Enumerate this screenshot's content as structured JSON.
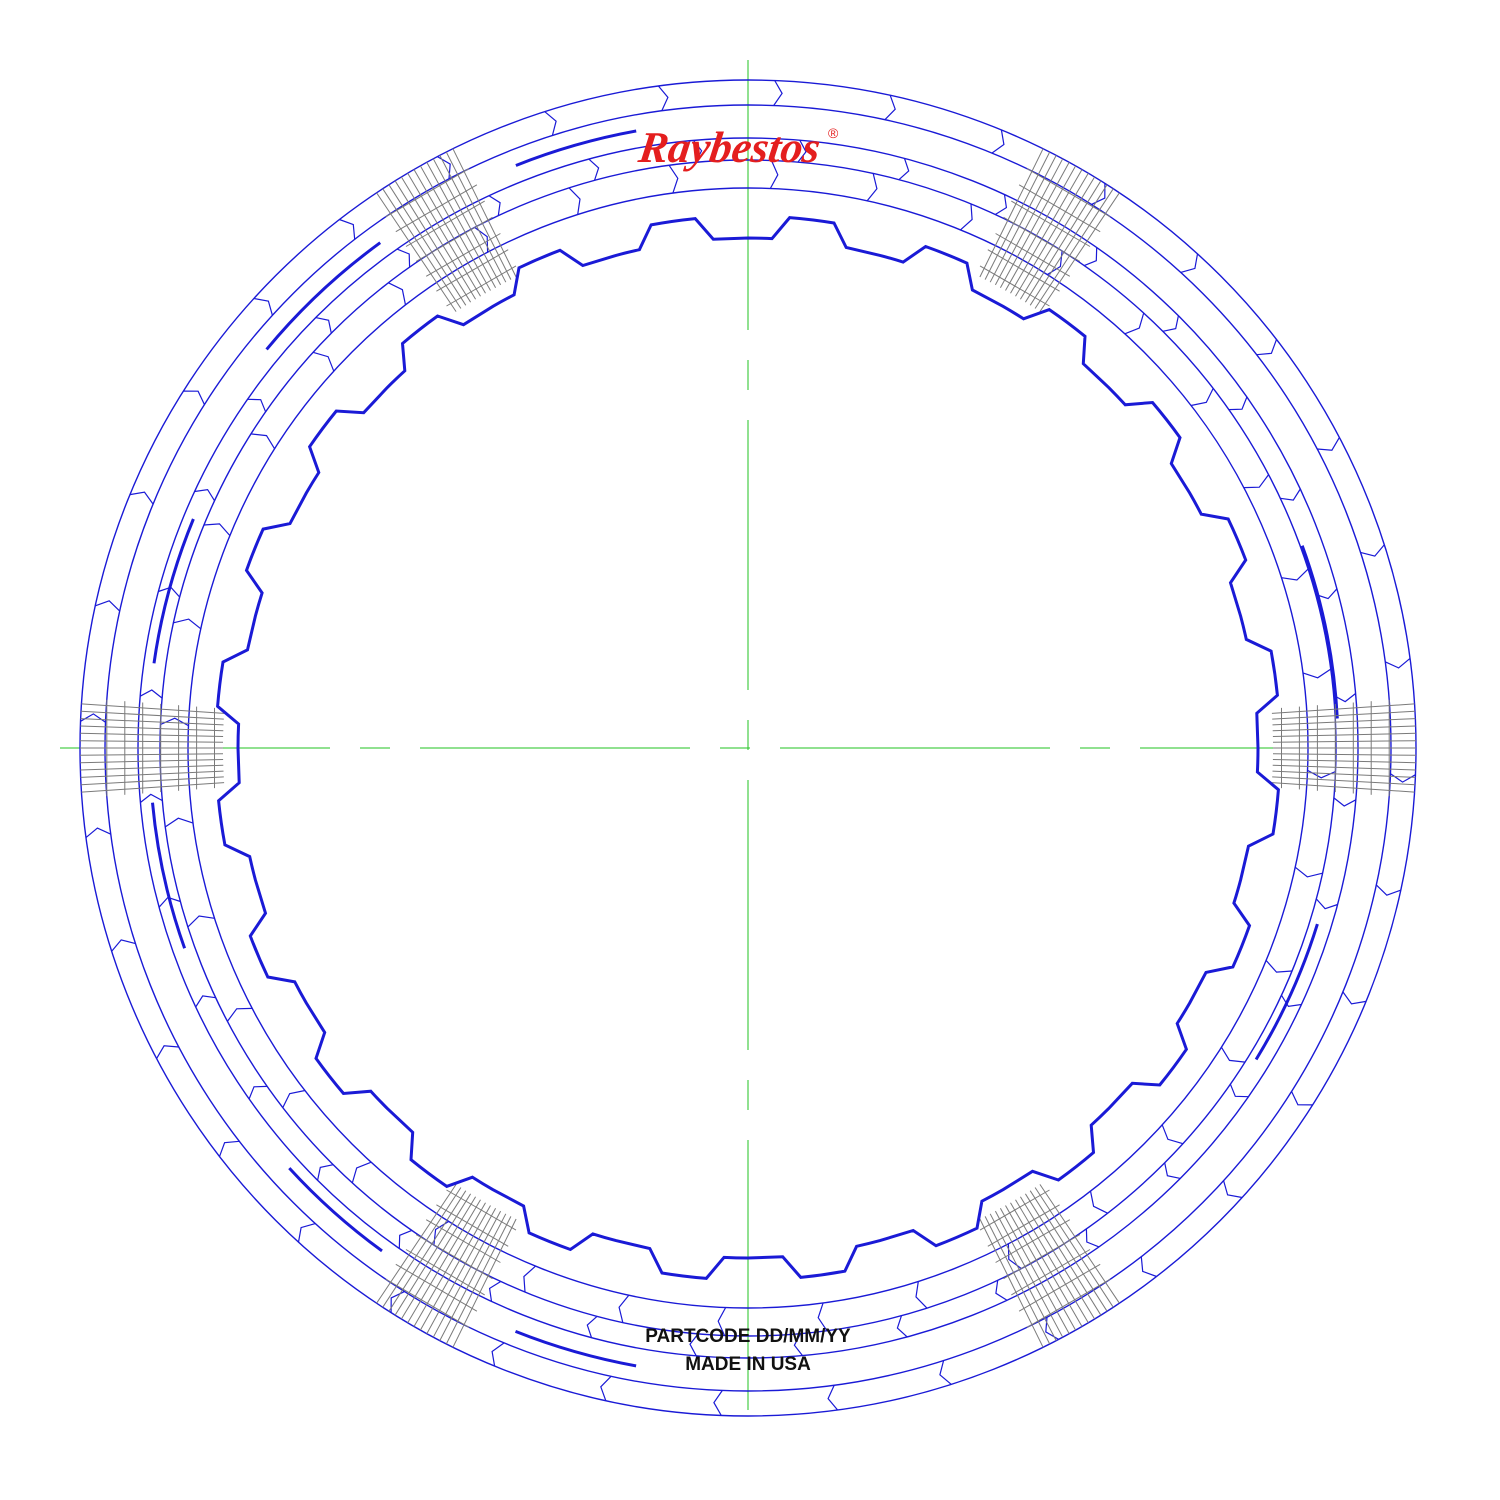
{
  "logo": {
    "brand": "Raybestos",
    "registered_mark": "®"
  },
  "labels": {
    "part_code": "PARTCODE DD/MM/YY",
    "origin": "MADE IN USA"
  },
  "colors": {
    "outline": "#1a1ad6",
    "centerline": "#22c322",
    "hatch": "#7a7a7a",
    "logo": "#e41e1e",
    "text": "#111111"
  },
  "plate": {
    "inner_teeth": 24,
    "outer_groove_segments": 36,
    "hatch_zones": 6
  }
}
